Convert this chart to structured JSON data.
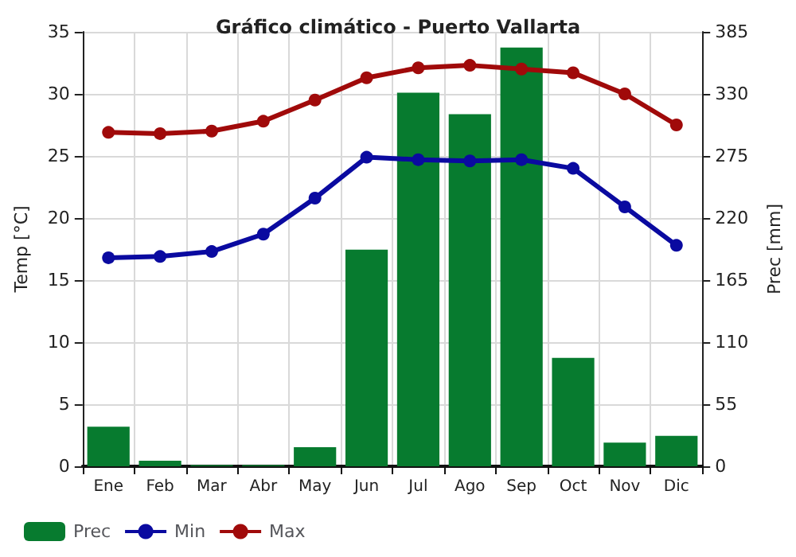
{
  "chart_data": {
    "type": "bar",
    "title": "Gráfico climático - Puerto Vallarta",
    "ylabel": "Temp [°C]",
    "y2label": "Prec [mm]",
    "categories": [
      "Ene",
      "Feb",
      "Mar",
      "Abr",
      "May",
      "Jun",
      "Jul",
      "Ago",
      "Sep",
      "Oct",
      "Nov",
      "Dic"
    ],
    "series": [
      {
        "name": "Prec",
        "axis": "y2",
        "color": "#077b2f",
        "values": [
          35,
          5,
          1,
          1,
          17,
          192,
          331,
          312,
          371,
          96,
          21,
          27
        ]
      },
      {
        "name": "Min",
        "type": "line",
        "color": "#0a0aa0",
        "values": [
          16.8,
          16.9,
          17.3,
          18.7,
          21.6,
          24.9,
          24.7,
          24.6,
          24.7,
          24.0,
          20.9,
          17.8
        ]
      },
      {
        "name": "Max",
        "type": "line",
        "color": "#a00a0a",
        "values": [
          26.9,
          26.8,
          27.0,
          27.8,
          29.5,
          31.3,
          32.1,
          32.3,
          32.0,
          31.7,
          30.0,
          27.5
        ]
      }
    ],
    "ylim": [
      0,
      35
    ],
    "yticks": [
      0,
      5,
      10,
      15,
      20,
      25,
      30,
      35
    ],
    "y2lim": [
      0,
      385
    ],
    "y2ticks": [
      0,
      55,
      110,
      165,
      220,
      275,
      330,
      385
    ],
    "grid": true,
    "legend": "bottom left",
    "marker": "circle",
    "line_style": "solid"
  }
}
